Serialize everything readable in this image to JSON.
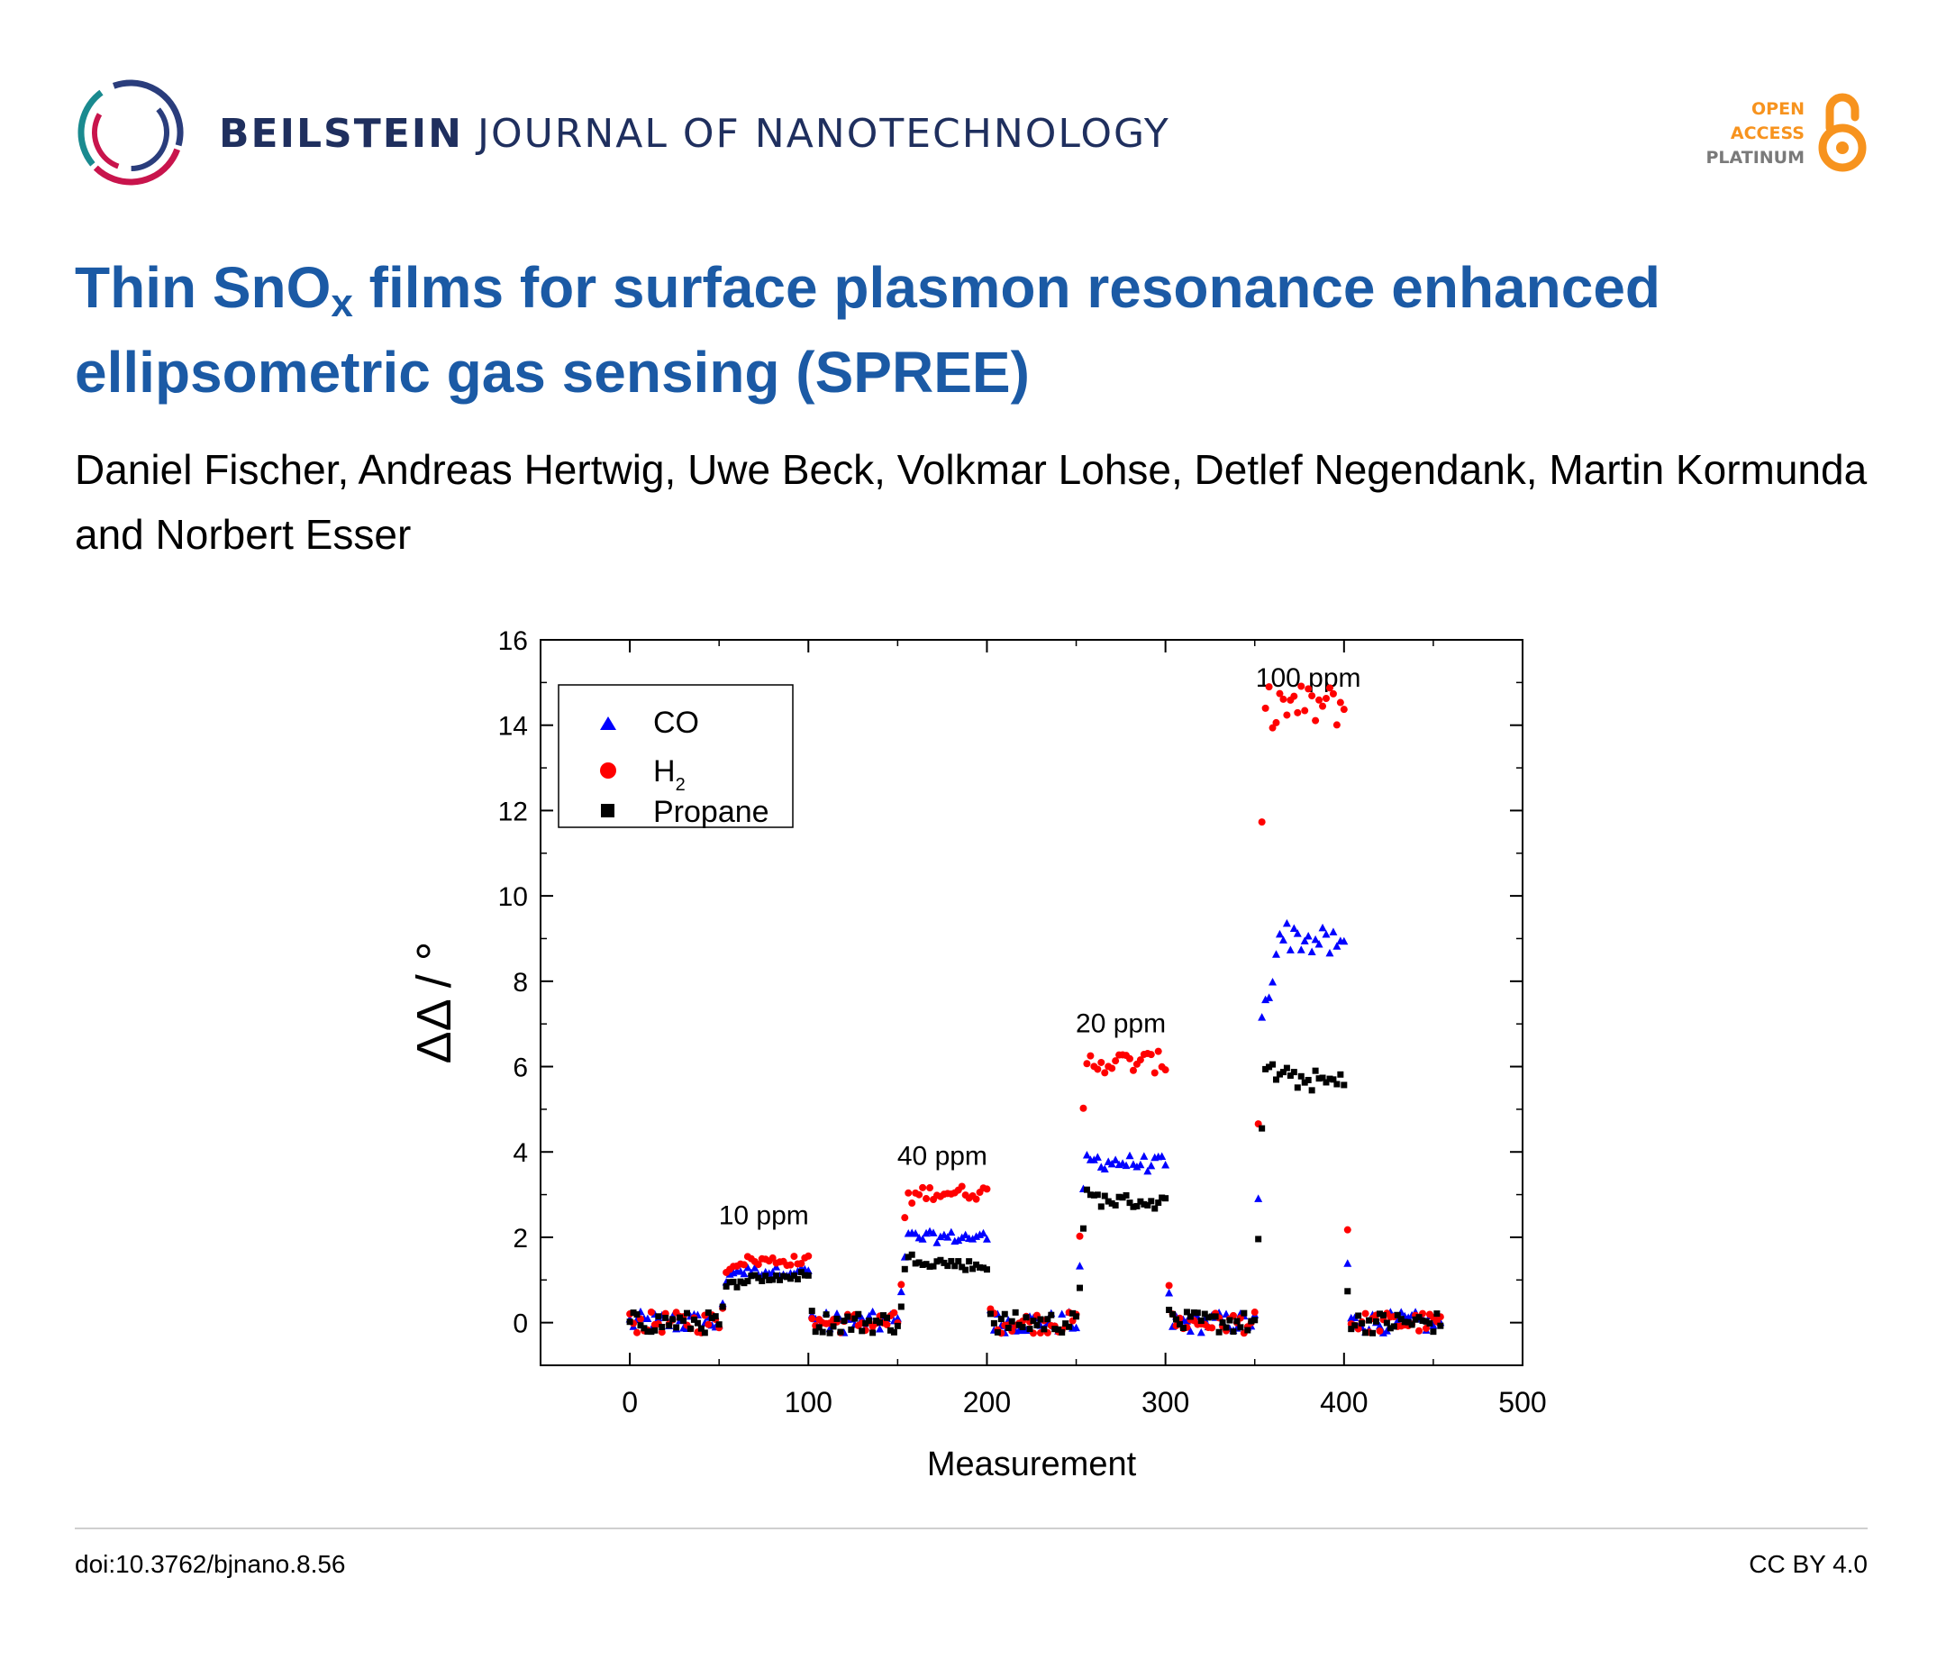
{
  "header": {
    "journal_bold": "BEILSTEIN",
    "journal_light": "JOURNAL OF NANOTECHNOLOGY",
    "oa_line1": "OPEN",
    "oa_line2": "ACCESS",
    "oa_line3": "PLATINUM"
  },
  "paper": {
    "title_part1": "Thin SnO",
    "title_sub": "x",
    "title_part2": " films for surface plasmon resonance enhanced ellipsometric gas sensing (SPREE)",
    "authors": "Daniel Fischer, Andreas Hertwig, Uwe Beck, Volkmar Lohse, Detlef Negendank, Martin Kormunda and Norbert Esser"
  },
  "chart_data": {
    "type": "scatter",
    "xlabel": "Measurement",
    "ylabel": "ΔΔ / °",
    "xlim": [
      -50,
      500
    ],
    "ylim": [
      -1,
      16
    ],
    "xticks": [
      "0",
      "100",
      "200",
      "300",
      "400",
      "500"
    ],
    "yticks": [
      "0",
      "2",
      "4",
      "6",
      "8",
      "10",
      "12",
      "14",
      "16"
    ],
    "legend_position": "top-left",
    "annotations": [
      {
        "text": "10 ppm",
        "x": 75,
        "y": 2.3
      },
      {
        "text": "40 ppm",
        "x": 175,
        "y": 3.7
      },
      {
        "text": "20 ppm",
        "x": 275,
        "y": 6.8
      },
      {
        "text": "100 ppm",
        "x": 380,
        "y": 14.9
      }
    ],
    "exposure_intervals": [
      [
        52,
        100
      ],
      [
        152,
        200
      ],
      [
        252,
        300
      ],
      [
        352,
        400
      ]
    ],
    "series": [
      {
        "name": "CO",
        "marker": "triangle",
        "color": "#0000ff",
        "plateaus": [
          1.2,
          2.0,
          3.8,
          9.2
        ],
        "initial_peaks": [
          1.2,
          2.0,
          3.8,
          6.4
        ],
        "decay_to": [
          1.2,
          2.0,
          3.7,
          8.8
        ]
      },
      {
        "name": "H2",
        "marker": "circle",
        "color": "#ff0000",
        "plateaus": [
          1.45,
          3.05,
          6.1,
          14.45
        ],
        "initial_peaks": [
          1.3,
          2.8,
          6.1,
          14.4
        ],
        "decay_to": [
          1.45,
          3.05,
          6.1,
          14.45
        ]
      },
      {
        "name": "Propane",
        "marker": "square",
        "color": "#000000",
        "plateaus": [
          1.0,
          1.5,
          2.9,
          5.8
        ],
        "initial_peaks": [
          0.8,
          1.5,
          3.0,
          6.1
        ],
        "decay_to": [
          1.1,
          1.3,
          2.8,
          5.6
        ]
      }
    ],
    "legend_labels": {
      "co": "CO",
      "h2_main": "H",
      "h2_sub": "2",
      "propane": "Propane"
    },
    "colors": {
      "co": "#0000ff",
      "h2": "#ff0000",
      "propane": "#000000"
    }
  },
  "footer": {
    "doi": "doi:10.3762/bjnano.8.56",
    "license": "CC BY 4.0"
  },
  "colors": {
    "title_blue": "#1b5aa5",
    "journal_navy": "#1f2f5e",
    "oa_orange": "#f7931e"
  }
}
